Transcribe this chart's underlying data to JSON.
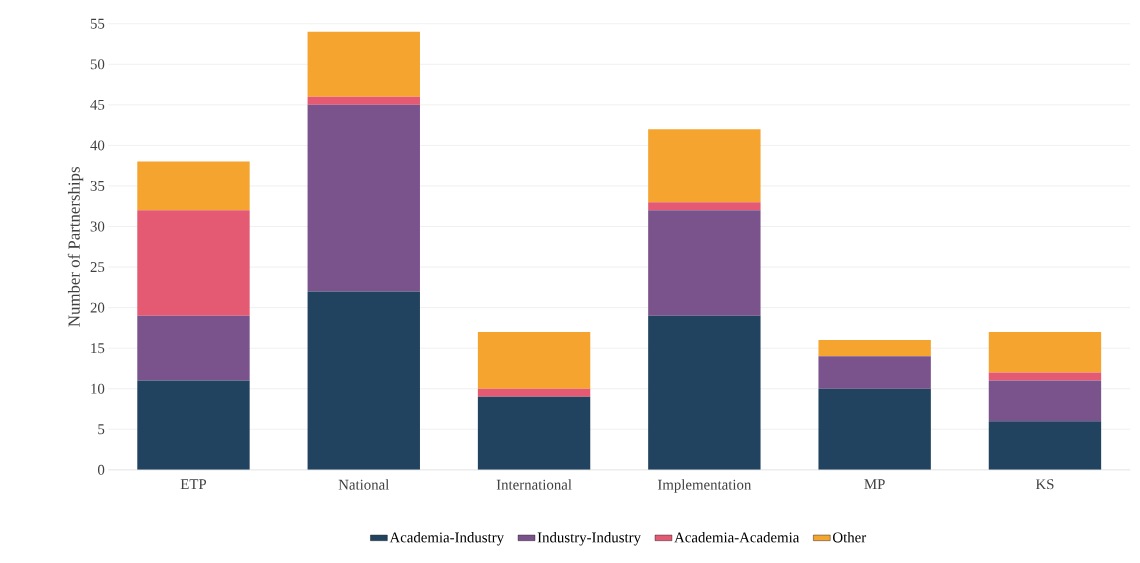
{
  "chart_data": {
    "type": "bar",
    "stacked": true,
    "ylabel": "Number of Partnerships",
    "categories": [
      "ETP",
      "National",
      "International",
      "Implementation",
      "MP",
      "KS"
    ],
    "series": [
      {
        "name": "Academia-Industry",
        "color": "#21435f",
        "values": [
          11,
          22,
          9,
          19,
          10,
          6
        ]
      },
      {
        "name": "Industry-Industry",
        "color": "#7b538c",
        "values": [
          8,
          23,
          0,
          13,
          4,
          5
        ]
      },
      {
        "name": "Academia-Academia",
        "color": "#e35a72",
        "values": [
          13,
          1,
          1,
          1,
          0,
          1
        ]
      },
      {
        "name": "Other",
        "color": "#f4a42f",
        "values": [
          6,
          8,
          7,
          9,
          2,
          5
        ]
      }
    ],
    "ylim": [
      0,
      55
    ],
    "yticks": [
      0,
      5,
      10,
      15,
      20,
      25,
      30,
      35,
      40,
      45,
      50,
      55
    ],
    "grid": "y",
    "legend": "bottom"
  }
}
